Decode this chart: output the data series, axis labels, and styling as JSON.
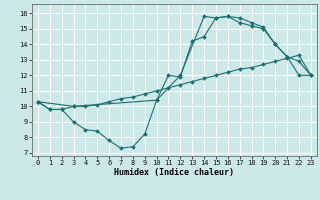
{
  "xlabel": "Humidex (Indice chaleur)",
  "bg_color": "#cde8e8",
  "grid_color": "#ffffff",
  "line_color": "#1a7070",
  "xlim": [
    -0.5,
    23.5
  ],
  "ylim": [
    6.8,
    16.6
  ],
  "xticks": [
    0,
    1,
    2,
    3,
    4,
    5,
    6,
    7,
    8,
    9,
    10,
    11,
    12,
    13,
    14,
    15,
    16,
    17,
    18,
    19,
    20,
    21,
    22,
    23
  ],
  "yticks": [
    7,
    8,
    9,
    10,
    11,
    12,
    13,
    14,
    15,
    16
  ],
  "line1_x": [
    0,
    1,
    2,
    3,
    4,
    5,
    6,
    7,
    8,
    9,
    10,
    11,
    12,
    13,
    14,
    15,
    16,
    17,
    18,
    19,
    20,
    21,
    22,
    23
  ],
  "line1_y": [
    10.3,
    9.8,
    9.8,
    9.0,
    8.5,
    8.4,
    7.8,
    7.3,
    7.4,
    8.2,
    10.4,
    12.0,
    11.9,
    14.2,
    14.5,
    15.7,
    15.8,
    15.7,
    15.4,
    15.1,
    14.0,
    13.2,
    12.9,
    12.0
  ],
  "line2_x": [
    0,
    1,
    2,
    3,
    4,
    5,
    6,
    7,
    8,
    9,
    10,
    11,
    12,
    13,
    14,
    15,
    16,
    17,
    18,
    19,
    20,
    21,
    22,
    23
  ],
  "line2_y": [
    10.3,
    9.8,
    9.8,
    10.0,
    10.0,
    10.1,
    10.3,
    10.5,
    10.6,
    10.8,
    11.0,
    11.2,
    11.4,
    11.6,
    11.8,
    12.0,
    12.2,
    12.4,
    12.5,
    12.7,
    12.9,
    13.1,
    13.3,
    12.0
  ],
  "line3_x": [
    0,
    3,
    10,
    12,
    14,
    15,
    16,
    17,
    18,
    19,
    20,
    21,
    22,
    23
  ],
  "line3_y": [
    10.3,
    10.0,
    10.4,
    12.0,
    15.8,
    15.7,
    15.8,
    15.4,
    15.2,
    15.0,
    14.0,
    13.2,
    12.0,
    12.0
  ],
  "xlabel_fontsize": 6,
  "tick_fontsize": 5,
  "marker_size": 2.0,
  "line_width": 0.8
}
